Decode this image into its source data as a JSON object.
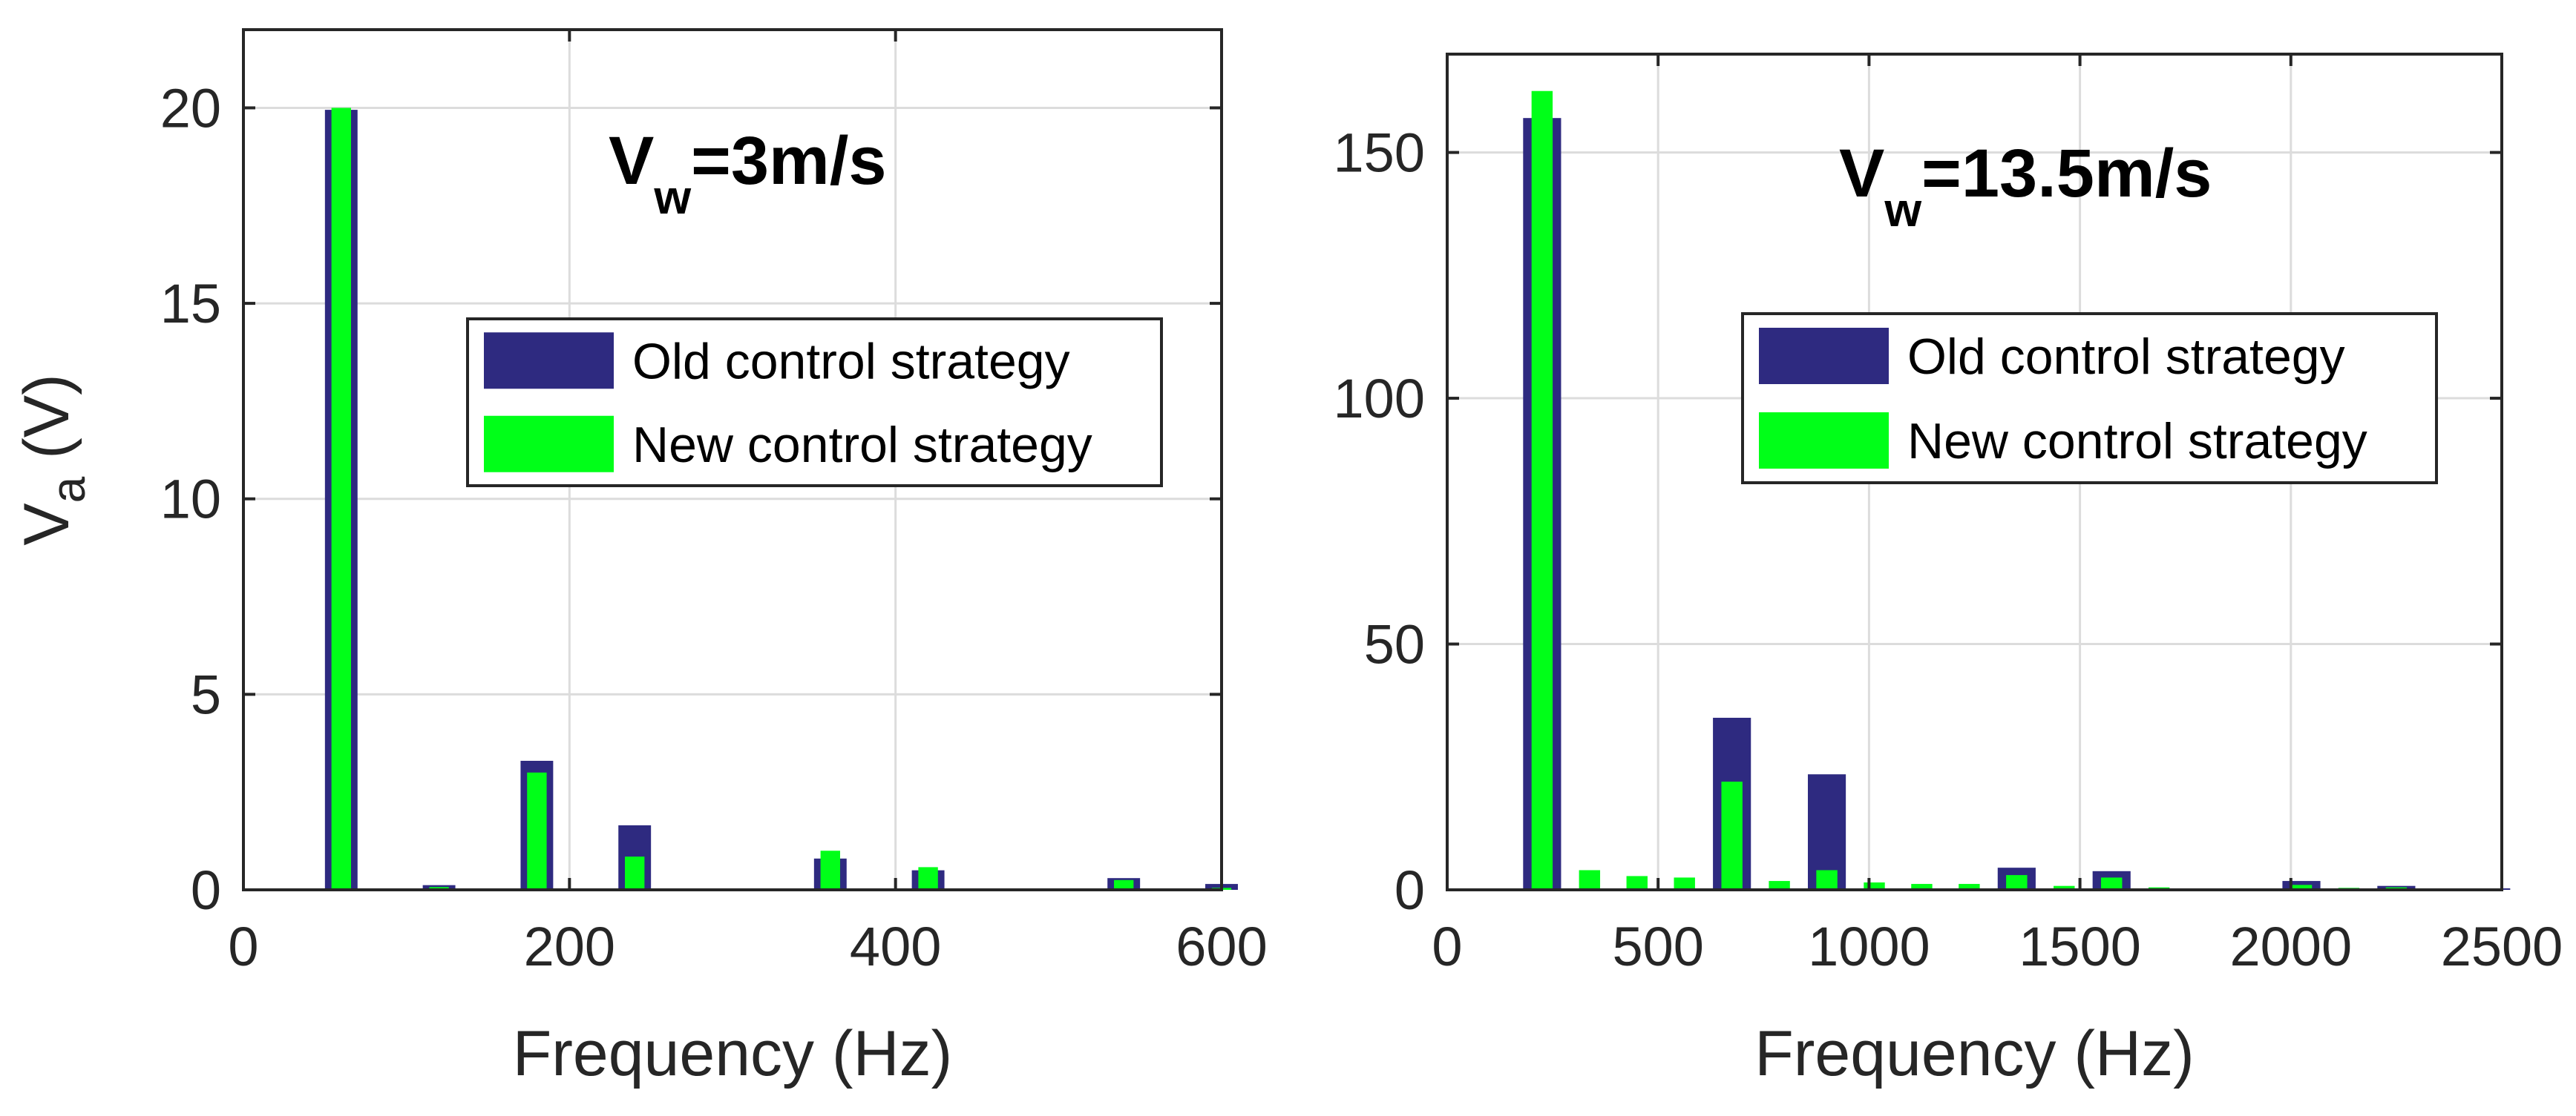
{
  "colors": {
    "old": "#2e2a80",
    "new": "#00ff18",
    "grid": "#dcdcdc",
    "axis": "#262626"
  },
  "chart_data": [
    {
      "type": "bar",
      "title": "",
      "annotation": {
        "main": "V",
        "sub": "w",
        "rest": "=3m/s"
      },
      "xlabel": "Frequency (Hz)",
      "ylabel": {
        "main": "V",
        "sub": "a",
        "rest": " (V)"
      },
      "xlim": [
        0,
        600
      ],
      "ylim": [
        0,
        22
      ],
      "xticks": [
        0,
        200,
        400,
        600
      ],
      "yticks": [
        0,
        5,
        10,
        15,
        20
      ],
      "xtick_labels": [
        "0",
        "200",
        "400",
        "600"
      ],
      "ytick_labels": [
        "0",
        "5",
        "10",
        "15",
        "20"
      ],
      "grid": true,
      "legend_position": "center-right",
      "bar_width_old": 20,
      "bar_width_new": 12,
      "series": [
        {
          "name": "Old control strategy",
          "x": [
            30,
            60,
            90,
            120,
            150,
            180,
            210,
            240,
            270,
            300,
            330,
            360,
            390,
            420,
            450,
            480,
            510,
            540,
            570,
            600
          ],
          "values": [
            0.02,
            19.95,
            0.02,
            0.12,
            0.02,
            3.3,
            0.02,
            1.65,
            0.02,
            0.02,
            0.02,
            0.8,
            0.02,
            0.5,
            0.02,
            0.02,
            0.02,
            0.3,
            0.02,
            0.15
          ]
        },
        {
          "name": "New control strategy",
          "x": [
            30,
            60,
            90,
            120,
            150,
            180,
            210,
            240,
            270,
            300,
            330,
            360,
            390,
            420,
            450,
            480,
            510,
            540,
            570,
            600
          ],
          "values": [
            0.01,
            20.0,
            0.01,
            0.07,
            0.01,
            3.0,
            0.01,
            0.85,
            0.01,
            0.01,
            0.01,
            1.0,
            0.01,
            0.58,
            0.01,
            0.01,
            0.01,
            0.25,
            0.01,
            0.05
          ]
        }
      ]
    },
    {
      "type": "bar",
      "title": "",
      "annotation": {
        "main": "V",
        "sub": "w",
        "rest": "=13.5m/s"
      },
      "xlabel": "Frequency (Hz)",
      "ylabel": {
        "main": "",
        "sub": "",
        "rest": ""
      },
      "xlim": [
        0,
        2500
      ],
      "ylim": [
        0,
        170
      ],
      "xticks": [
        0,
        500,
        1000,
        1500,
        2000,
        2500
      ],
      "yticks": [
        0,
        50,
        100,
        150
      ],
      "xtick_labels": [
        "0",
        "500",
        "1000",
        "1500",
        "2000",
        "2500"
      ],
      "ytick_labels": [
        "0",
        "50",
        "100",
        "150"
      ],
      "grid": true,
      "legend_position": "center-right",
      "bar_width_old": 90,
      "bar_width_new": 50,
      "series": [
        {
          "name": "Old control strategy",
          "x": [
            112.5,
            225,
            337.5,
            450,
            562.5,
            675,
            787.5,
            900,
            1012.5,
            1125,
            1237.5,
            1350,
            1462.5,
            1575,
            1687.5,
            1800,
            1912.5,
            2025,
            2137.5,
            2250,
            2362.5,
            2475
          ],
          "values": [
            0.3,
            157,
            0.3,
            0.3,
            0.3,
            35,
            0.3,
            23.5,
            0.3,
            0.3,
            0.3,
            4.5,
            0.3,
            3.8,
            0.3,
            0.3,
            0.3,
            1.8,
            0.3,
            0.8,
            0.3,
            0.3
          ]
        },
        {
          "name": "New control strategy",
          "x": [
            112.5,
            225,
            337.5,
            450,
            562.5,
            675,
            787.5,
            900,
            1012.5,
            1125,
            1237.5,
            1350,
            1462.5,
            1575,
            1687.5,
            1800,
            1912.5,
            2025,
            2137.5,
            2250,
            2362.5,
            2475
          ],
          "values": [
            0.2,
            162.5,
            4.0,
            2.8,
            2.5,
            22,
            1.8,
            4.0,
            1.5,
            1.2,
            1.2,
            3.0,
            0.8,
            2.5,
            0.5,
            0.3,
            0.3,
            1.0,
            0.4,
            0.5,
            0.3,
            0.2
          ]
        }
      ]
    }
  ]
}
